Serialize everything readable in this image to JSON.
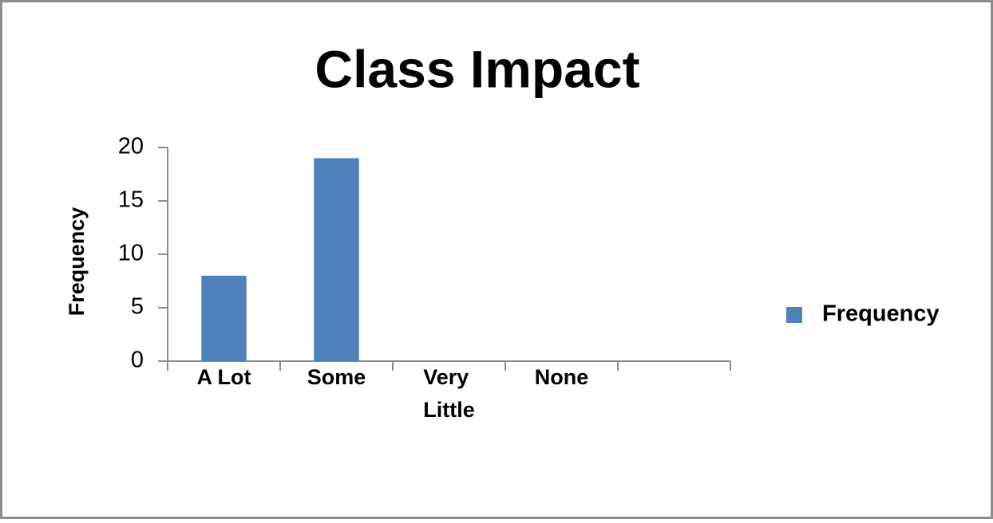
{
  "chart_data": {
    "type": "bar",
    "title": "Class Impact",
    "y_label": "Frequency",
    "categories": [
      "A Lot",
      "Some",
      "Very Little",
      "None",
      null
    ],
    "series": [
      {
        "name": "Frequency",
        "color": "#4f81bd",
        "values": [
          8,
          19,
          0,
          0,
          null
        ]
      }
    ],
    "ylim": [
      0,
      20
    ],
    "yticks": [
      0,
      5,
      10,
      15,
      20
    ],
    "grid": false,
    "legend": "right"
  }
}
